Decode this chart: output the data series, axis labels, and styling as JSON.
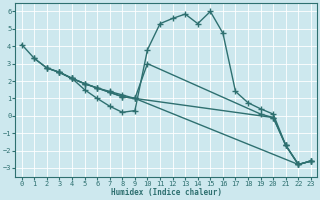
{
  "color": "#2e7070",
  "marker": "+",
  "markersize": 4,
  "linewidth": 1.0,
  "xlim": [
    -0.5,
    23.5
  ],
  "ylim": [
    -3.5,
    6.5
  ],
  "yticks": [
    -3,
    -2,
    -1,
    0,
    1,
    2,
    3,
    4,
    5,
    6
  ],
  "xticks": [
    0,
    1,
    2,
    3,
    4,
    5,
    6,
    7,
    8,
    9,
    10,
    11,
    12,
    13,
    14,
    15,
    16,
    17,
    18,
    19,
    20,
    21,
    22,
    23
  ],
  "xlabel": "Humidex (Indice chaleur)",
  "bg_color": "#cde8ee",
  "grid_color": "#b0d8e0",
  "text_color": "#2e7070",
  "line1_x": [
    0,
    1,
    2,
    3,
    4,
    5,
    6,
    7,
    8,
    9,
    10,
    11,
    12,
    13,
    14,
    15,
    16,
    17,
    18,
    19,
    20,
    21,
    22,
    23
  ],
  "line1_y": [
    4.1,
    3.3,
    2.75,
    2.5,
    2.15,
    1.5,
    1.0,
    0.55,
    0.2,
    0.3,
    3.8,
    5.3,
    5.6,
    5.85,
    5.3,
    6.0,
    4.75,
    1.4,
    0.75,
    0.4,
    0.1,
    -1.7,
    -2.8,
    -2.6
  ],
  "line2_x": [
    1,
    2,
    3,
    4,
    5,
    6,
    7,
    8,
    9,
    10,
    19,
    20,
    21,
    22,
    23
  ],
  "line2_y": [
    3.3,
    2.75,
    2.5,
    2.15,
    1.85,
    1.6,
    1.4,
    1.2,
    1.0,
    3.0,
    0.1,
    -0.1,
    -1.7,
    -2.8,
    -2.6
  ],
  "line3_x": [
    2,
    3,
    4,
    5,
    6,
    7,
    8,
    9,
    20,
    21,
    22,
    23
  ],
  "line3_y": [
    2.75,
    2.5,
    2.15,
    1.85,
    1.6,
    1.35,
    1.1,
    1.0,
    -0.1,
    -1.7,
    -2.8,
    -2.6
  ],
  "line4_x": [
    3,
    4,
    5,
    6,
    7,
    8,
    9,
    22,
    23
  ],
  "line4_y": [
    2.5,
    2.15,
    1.85,
    1.6,
    1.35,
    1.1,
    1.0,
    -2.8,
    -2.6
  ]
}
